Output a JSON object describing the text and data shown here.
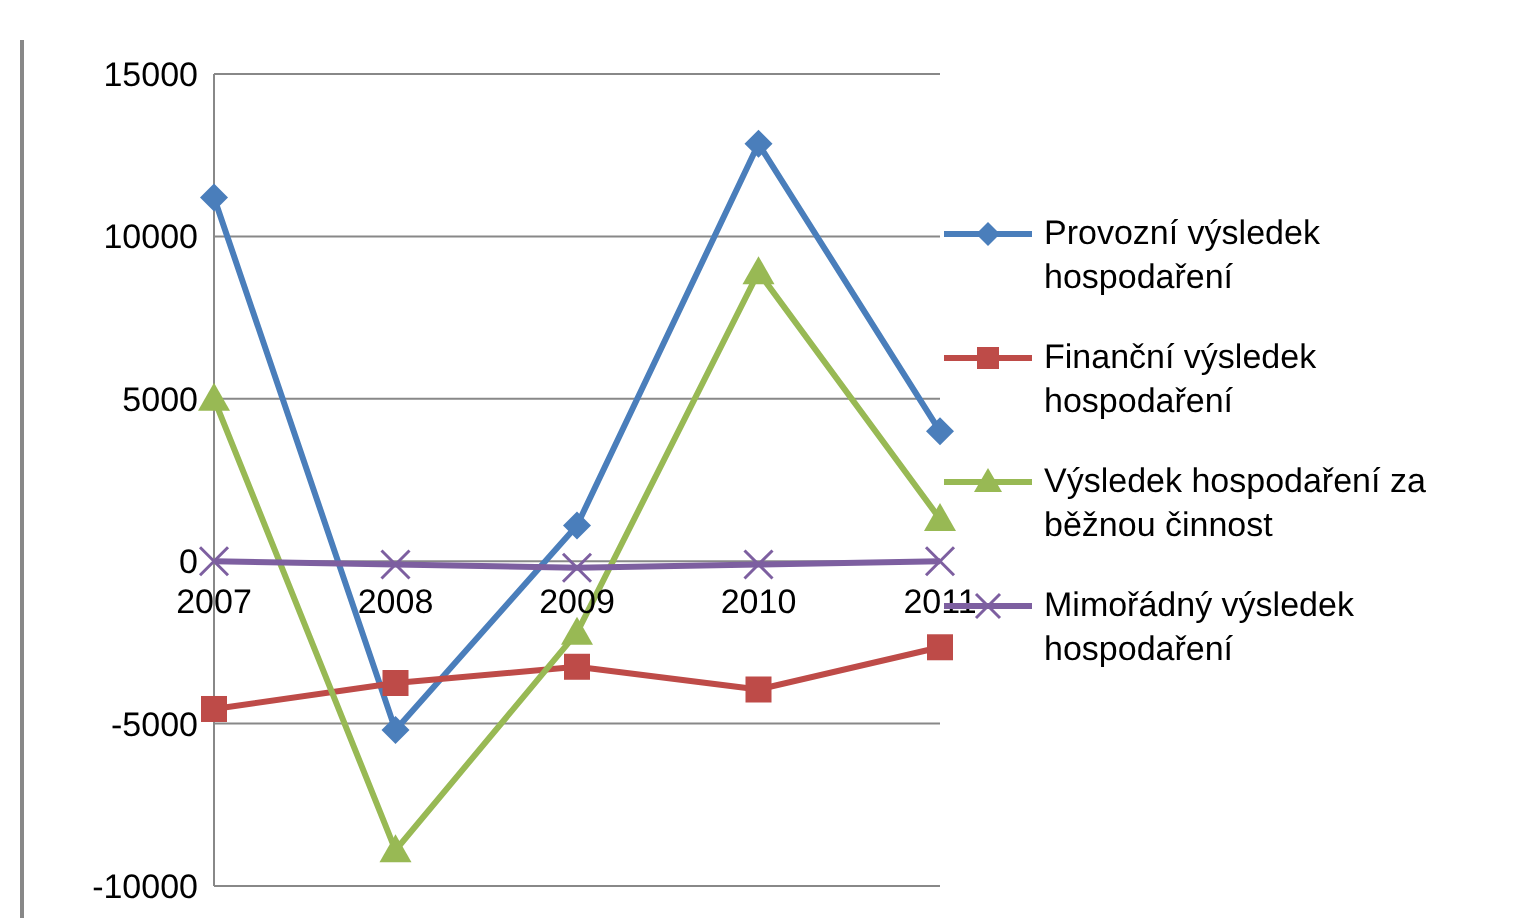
{
  "chart_data": {
    "type": "line",
    "categories": [
      "2007",
      "2008",
      "2009",
      "2010",
      "2011"
    ],
    "series": [
      {
        "name": "Provozní výsledek hospodaření",
        "color": "#4a7ebb",
        "marker": "diamond",
        "values": [
          11200,
          -5200,
          1100,
          12850,
          4000
        ]
      },
      {
        "name": "Finanční výsledek hospodaření",
        "color": "#be4b48",
        "marker": "square",
        "values": [
          -4550,
          -3750,
          -3250,
          -3950,
          -2650
        ]
      },
      {
        "name": "Výsledek hospodaření za běžnou činnost",
        "color": "#98b954",
        "marker": "triangle",
        "values": [
          5000,
          -8900,
          -2200,
          8900,
          1300
        ]
      },
      {
        "name": "Mimořádný výsledek hospodaření",
        "color": "#7d5fa0",
        "marker": "cross",
        "values": [
          0,
          -100,
          -200,
          -100,
          0
        ]
      }
    ],
    "ylim": [
      -10000,
      15000
    ],
    "yticks": [
      -10000,
      -5000,
      0,
      5000,
      10000,
      15000
    ],
    "grid": "y",
    "legend": "right"
  }
}
